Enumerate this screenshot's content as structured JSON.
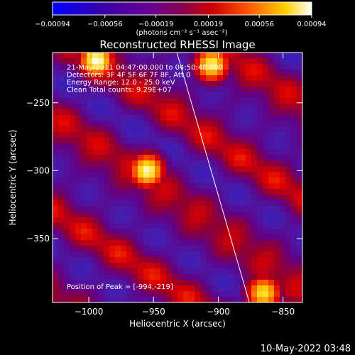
{
  "chart_data": {
    "type": "heatmap",
    "title": "Reconstructed RHESSI Image",
    "xlabel": "Heliocentric X (arcsec)",
    "ylabel": "Heliocentric Y (arcsec)",
    "xlim": [
      -1028,
      -835
    ],
    "ylim": [
      -397,
      -213
    ],
    "xticks": [
      -1000,
      -950,
      -900,
      -850
    ],
    "yticks": [
      -250,
      -300,
      -350
    ],
    "xtick_labels": [
      "−1000",
      "−950",
      "−900",
      "−850"
    ],
    "ytick_labels": [
      "−250",
      "−300",
      "−350"
    ],
    "colorbar": {
      "range": [
        -0.00094,
        0.00094
      ],
      "ticks": [
        -0.00094,
        -0.00056,
        -0.00019,
        0.00019,
        0.00056,
        0.00094
      ],
      "tick_labels": [
        "−0.00094",
        "−0.00056",
        "−0.00019",
        "0.00019",
        "0.00056",
        "0.00094"
      ],
      "unit_label": "(photons cm⁻² s⁻¹ asec⁻²)"
    },
    "annotations": [
      "21-May-2011 04:47:00.000 to 04:50:48.000",
      "Detectors: 3F 4F 5F 6F 7F 8F, Att 0",
      "Energy Range: 12.0 - 25.0 keV",
      "Clean    Total counts: 9.29E+07"
    ],
    "peak_label": "Position of Peak = [-994,-219]",
    "peak_position": [
      -994,
      -219
    ],
    "limb_line": [
      [
        -932,
        -213
      ],
      [
        -876,
        -397
      ]
    ],
    "bright_sources": [
      {
        "x": -994,
        "y": -219,
        "level": 0.00094
      },
      {
        "x": -955,
        "y": -300,
        "level": 0.0009
      },
      {
        "x": -905,
        "y": -222,
        "level": 0.00085
      },
      {
        "x": -865,
        "y": -390,
        "level": 0.0008
      }
    ]
  },
  "footer_timestamp": "10-May-2022 03:48",
  "colors": {
    "background": "#000000",
    "text": "#ffffff",
    "colormap": [
      "#0000ff",
      "#4b0082",
      "#8b00a0",
      "#ff0000",
      "#ff8c00",
      "#ffff00",
      "#ffffff"
    ]
  }
}
